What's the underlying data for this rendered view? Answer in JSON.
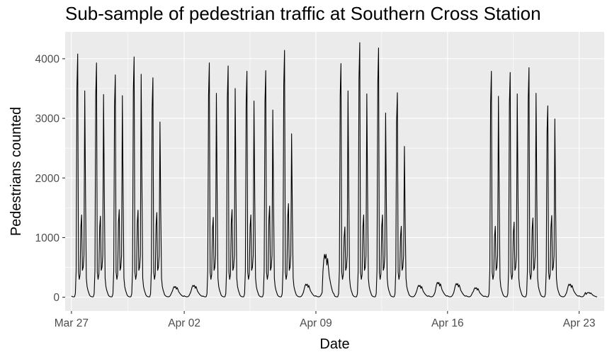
{
  "chart_data": {
    "type": "line",
    "title": "Sub-sample of pedestrian traffic at Southern Cross Station",
    "xlabel": "Date",
    "ylabel": "Pedestrians counted",
    "x_ticks": [
      "Mar 27",
      "Apr 02",
      "Apr 09",
      "Apr 16",
      "Apr 23"
    ],
    "x_tick_dates": [
      "2017-03-27",
      "2017-04-02",
      "2017-04-09",
      "2017-04-16",
      "2017-04-23"
    ],
    "y_ticks": [
      "0",
      "1000",
      "2000",
      "3000",
      "4000"
    ],
    "xlim": [
      "2017-03-26T16:00",
      "2017-04-24T08:00"
    ],
    "ylim": [
      -230,
      4450
    ],
    "grid": true,
    "series": [
      {
        "color": "#000000",
        "daily_peaks": [
          {
            "date": "2017-03-27",
            "am": 4080,
            "mid": 1380,
            "pm": 3460
          },
          {
            "date": "2017-03-28",
            "am": 3930,
            "mid": 1360,
            "pm": 3400
          },
          {
            "date": "2017-03-29",
            "am": 3730,
            "mid": 1470,
            "pm": 3380
          },
          {
            "date": "2017-03-30",
            "am": 4030,
            "mid": 1460,
            "pm": 3740
          },
          {
            "date": "2017-03-31",
            "am": 3680,
            "mid": 1420,
            "pm": 2940
          },
          {
            "date": "2017-04-01",
            "weekend": 180
          },
          {
            "date": "2017-04-02",
            "weekend": 200
          },
          {
            "date": "2017-04-03",
            "am": 3930,
            "mid": 1340,
            "pm": 3420
          },
          {
            "date": "2017-04-04",
            "am": 3880,
            "mid": 1470,
            "pm": 3500
          },
          {
            "date": "2017-04-05",
            "am": 3790,
            "mid": 1380,
            "pm": 3290
          },
          {
            "date": "2017-04-06",
            "am": 3800,
            "mid": 1530,
            "pm": 3140
          },
          {
            "date": "2017-04-07",
            "am": 4140,
            "mid": 1570,
            "pm": 2740
          },
          {
            "date": "2017-04-08",
            "weekend": 220
          },
          {
            "date": "2017-04-09",
            "weekend": 720
          },
          {
            "date": "2017-04-10",
            "am": 3920,
            "mid": 1180,
            "pm": 3460
          },
          {
            "date": "2017-04-11",
            "am": 4270,
            "mid": 1380,
            "pm": 3410
          },
          {
            "date": "2017-04-12",
            "am": 4180,
            "mid": 1380,
            "pm": 3090
          },
          {
            "date": "2017-04-13",
            "am": 3430,
            "mid": 1190,
            "pm": 2530
          },
          {
            "date": "2017-04-14",
            "weekend": 200
          },
          {
            "date": "2017-04-15",
            "weekend": 250
          },
          {
            "date": "2017-04-16",
            "weekend": 230
          },
          {
            "date": "2017-04-17",
            "weekend": 160
          },
          {
            "date": "2017-04-18",
            "am": 3790,
            "mid": 1190,
            "pm": 3370
          },
          {
            "date": "2017-04-19",
            "am": 3770,
            "mid": 1260,
            "pm": 3410
          },
          {
            "date": "2017-04-20",
            "am": 3850,
            "mid": 1330,
            "pm": 3420
          },
          {
            "date": "2017-04-21",
            "am": 3210,
            "mid": 1370,
            "pm": 2990
          },
          {
            "date": "2017-04-22",
            "weekend": 220
          },
          {
            "date": "2017-04-23",
            "weekend": 80
          }
        ]
      }
    ]
  }
}
